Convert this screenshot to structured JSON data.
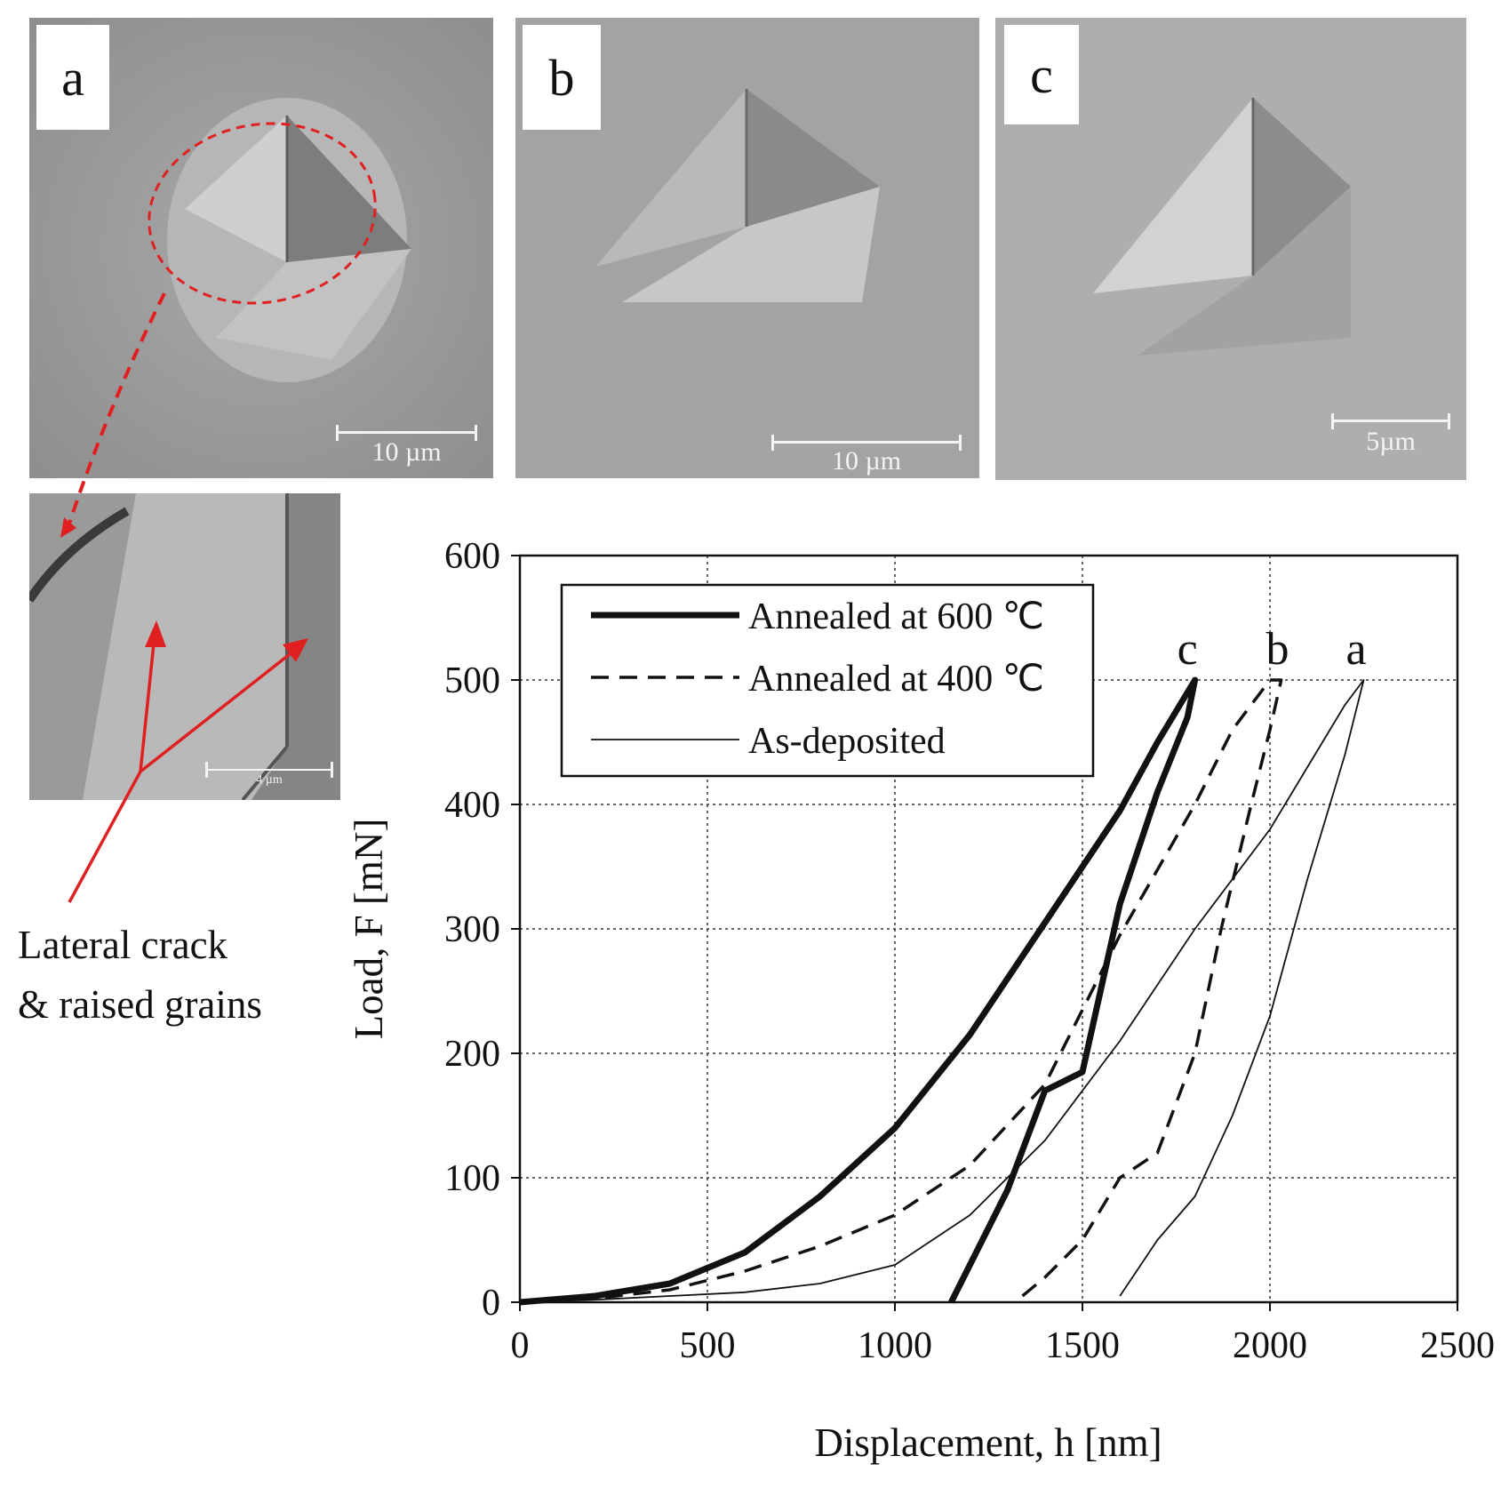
{
  "panels": [
    {
      "letter": "a",
      "scalebar": "10 µm"
    },
    {
      "letter": "b",
      "scalebar": "10 µm"
    },
    {
      "letter": "c",
      "scalebar": "5µm"
    }
  ],
  "inset": {
    "scalebar": "4 µm"
  },
  "annotation": {
    "line1": "Lateral crack",
    "line2": "& raised grains"
  },
  "colors": {
    "annotation_red": "#e02020",
    "sem_gray": "#9c9c9c"
  },
  "chart_data": {
    "type": "line",
    "xlabel": "Displacement, h  [nm]",
    "ylabel": "Load, F  [mN]",
    "xlim": [
      0,
      2500
    ],
    "ylim": [
      0,
      600
    ],
    "xticks": [
      0,
      500,
      1000,
      1500,
      2000,
      2500
    ],
    "yticks": [
      0,
      100,
      200,
      300,
      400,
      500,
      600
    ],
    "grid": true,
    "legend_position": "top-left",
    "series": [
      {
        "name": "Annealed at 600 ℃",
        "style": "thick-solid",
        "curve_label": "c",
        "x": [
          0,
          200,
          400,
          600,
          800,
          1000,
          1200,
          1400,
          1600,
          1700,
          1800,
          1780,
          1700,
          1600,
          1500,
          1400,
          1300,
          1200,
          1150
        ],
        "y": [
          0,
          5,
          15,
          40,
          85,
          140,
          215,
          305,
          395,
          450,
          500,
          470,
          410,
          320,
          185,
          170,
          90,
          30,
          0
        ]
      },
      {
        "name": "Annealed at 400 ℃",
        "style": "dashed",
        "curve_label": "b",
        "x": [
          0,
          200,
          400,
          600,
          800,
          1000,
          1200,
          1400,
          1500,
          1600,
          1800,
          1900,
          2000,
          2030,
          2000,
          1950,
          1870,
          1800,
          1700,
          1600,
          1500,
          1400,
          1320
        ],
        "y": [
          0,
          3,
          10,
          25,
          45,
          70,
          110,
          175,
          235,
          295,
          400,
          460,
          500,
          500,
          460,
          400,
          300,
          200,
          120,
          100,
          50,
          20,
          0
        ]
      },
      {
        "name": "As-deposited",
        "style": "thin-solid",
        "curve_label": "a",
        "x": [
          0,
          200,
          400,
          600,
          800,
          1000,
          1200,
          1400,
          1600,
          1800,
          2000,
          2100,
          2200,
          2250,
          2200,
          2100,
          2000,
          1900,
          1800,
          1700,
          1600
        ],
        "y": [
          0,
          2,
          5,
          8,
          15,
          30,
          70,
          130,
          210,
          300,
          380,
          430,
          480,
          500,
          440,
          340,
          230,
          150,
          85,
          50,
          5
        ]
      }
    ],
    "annotations": [
      {
        "text": "c",
        "x": 1780,
        "y": 520
      },
      {
        "text": "b",
        "x": 2020,
        "y": 520
      },
      {
        "text": "a",
        "x": 2230,
        "y": 520
      }
    ]
  }
}
